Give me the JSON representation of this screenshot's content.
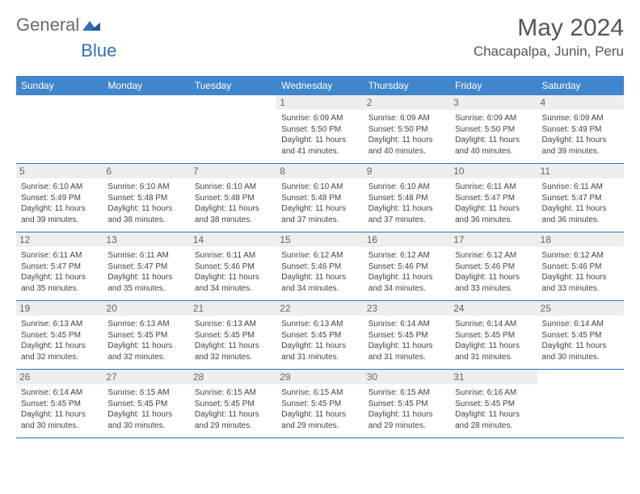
{
  "brand": {
    "left": "General",
    "right": "Blue"
  },
  "title": {
    "month_year": "May 2024",
    "location": "Chacapalpa, Junin, Peru"
  },
  "colors": {
    "header_bg": "#3f86cc",
    "border": "#2f71b8",
    "daynum_bg": "#eeeeee"
  },
  "weekdays": [
    "Sunday",
    "Monday",
    "Tuesday",
    "Wednesday",
    "Thursday",
    "Friday",
    "Saturday"
  ],
  "weeks": [
    [
      null,
      null,
      null,
      {
        "n": "1",
        "sunrise": "Sunrise: 6:09 AM",
        "sunset": "Sunset: 5:50 PM",
        "d1": "Daylight: 11 hours",
        "d2": "and 41 minutes."
      },
      {
        "n": "2",
        "sunrise": "Sunrise: 6:09 AM",
        "sunset": "Sunset: 5:50 PM",
        "d1": "Daylight: 11 hours",
        "d2": "and 40 minutes."
      },
      {
        "n": "3",
        "sunrise": "Sunrise: 6:09 AM",
        "sunset": "Sunset: 5:50 PM",
        "d1": "Daylight: 11 hours",
        "d2": "and 40 minutes."
      },
      {
        "n": "4",
        "sunrise": "Sunrise: 6:09 AM",
        "sunset": "Sunset: 5:49 PM",
        "d1": "Daylight: 11 hours",
        "d2": "and 39 minutes."
      }
    ],
    [
      {
        "n": "5",
        "sunrise": "Sunrise: 6:10 AM",
        "sunset": "Sunset: 5:49 PM",
        "d1": "Daylight: 11 hours",
        "d2": "and 39 minutes."
      },
      {
        "n": "6",
        "sunrise": "Sunrise: 6:10 AM",
        "sunset": "Sunset: 5:48 PM",
        "d1": "Daylight: 11 hours",
        "d2": "and 38 minutes."
      },
      {
        "n": "7",
        "sunrise": "Sunrise: 6:10 AM",
        "sunset": "Sunset: 5:48 PM",
        "d1": "Daylight: 11 hours",
        "d2": "and 38 minutes."
      },
      {
        "n": "8",
        "sunrise": "Sunrise: 6:10 AM",
        "sunset": "Sunset: 5:48 PM",
        "d1": "Daylight: 11 hours",
        "d2": "and 37 minutes."
      },
      {
        "n": "9",
        "sunrise": "Sunrise: 6:10 AM",
        "sunset": "Sunset: 5:48 PM",
        "d1": "Daylight: 11 hours",
        "d2": "and 37 minutes."
      },
      {
        "n": "10",
        "sunrise": "Sunrise: 6:11 AM",
        "sunset": "Sunset: 5:47 PM",
        "d1": "Daylight: 11 hours",
        "d2": "and 36 minutes."
      },
      {
        "n": "11",
        "sunrise": "Sunrise: 6:11 AM",
        "sunset": "Sunset: 5:47 PM",
        "d1": "Daylight: 11 hours",
        "d2": "and 36 minutes."
      }
    ],
    [
      {
        "n": "12",
        "sunrise": "Sunrise: 6:11 AM",
        "sunset": "Sunset: 5:47 PM",
        "d1": "Daylight: 11 hours",
        "d2": "and 35 minutes."
      },
      {
        "n": "13",
        "sunrise": "Sunrise: 6:11 AM",
        "sunset": "Sunset: 5:47 PM",
        "d1": "Daylight: 11 hours",
        "d2": "and 35 minutes."
      },
      {
        "n": "14",
        "sunrise": "Sunrise: 6:11 AM",
        "sunset": "Sunset: 5:46 PM",
        "d1": "Daylight: 11 hours",
        "d2": "and 34 minutes."
      },
      {
        "n": "15",
        "sunrise": "Sunrise: 6:12 AM",
        "sunset": "Sunset: 5:46 PM",
        "d1": "Daylight: 11 hours",
        "d2": "and 34 minutes."
      },
      {
        "n": "16",
        "sunrise": "Sunrise: 6:12 AM",
        "sunset": "Sunset: 5:46 PM",
        "d1": "Daylight: 11 hours",
        "d2": "and 34 minutes."
      },
      {
        "n": "17",
        "sunrise": "Sunrise: 6:12 AM",
        "sunset": "Sunset: 5:46 PM",
        "d1": "Daylight: 11 hours",
        "d2": "and 33 minutes."
      },
      {
        "n": "18",
        "sunrise": "Sunrise: 6:12 AM",
        "sunset": "Sunset: 5:46 PM",
        "d1": "Daylight: 11 hours",
        "d2": "and 33 minutes."
      }
    ],
    [
      {
        "n": "19",
        "sunrise": "Sunrise: 6:13 AM",
        "sunset": "Sunset: 5:45 PM",
        "d1": "Daylight: 11 hours",
        "d2": "and 32 minutes."
      },
      {
        "n": "20",
        "sunrise": "Sunrise: 6:13 AM",
        "sunset": "Sunset: 5:45 PM",
        "d1": "Daylight: 11 hours",
        "d2": "and 32 minutes."
      },
      {
        "n": "21",
        "sunrise": "Sunrise: 6:13 AM",
        "sunset": "Sunset: 5:45 PM",
        "d1": "Daylight: 11 hours",
        "d2": "and 32 minutes."
      },
      {
        "n": "22",
        "sunrise": "Sunrise: 6:13 AM",
        "sunset": "Sunset: 5:45 PM",
        "d1": "Daylight: 11 hours",
        "d2": "and 31 minutes."
      },
      {
        "n": "23",
        "sunrise": "Sunrise: 6:14 AM",
        "sunset": "Sunset: 5:45 PM",
        "d1": "Daylight: 11 hours",
        "d2": "and 31 minutes."
      },
      {
        "n": "24",
        "sunrise": "Sunrise: 6:14 AM",
        "sunset": "Sunset: 5:45 PM",
        "d1": "Daylight: 11 hours",
        "d2": "and 31 minutes."
      },
      {
        "n": "25",
        "sunrise": "Sunrise: 6:14 AM",
        "sunset": "Sunset: 5:45 PM",
        "d1": "Daylight: 11 hours",
        "d2": "and 30 minutes."
      }
    ],
    [
      {
        "n": "26",
        "sunrise": "Sunrise: 6:14 AM",
        "sunset": "Sunset: 5:45 PM",
        "d1": "Daylight: 11 hours",
        "d2": "and 30 minutes."
      },
      {
        "n": "27",
        "sunrise": "Sunrise: 6:15 AM",
        "sunset": "Sunset: 5:45 PM",
        "d1": "Daylight: 11 hours",
        "d2": "and 30 minutes."
      },
      {
        "n": "28",
        "sunrise": "Sunrise: 6:15 AM",
        "sunset": "Sunset: 5:45 PM",
        "d1": "Daylight: 11 hours",
        "d2": "and 29 minutes."
      },
      {
        "n": "29",
        "sunrise": "Sunrise: 6:15 AM",
        "sunset": "Sunset: 5:45 PM",
        "d1": "Daylight: 11 hours",
        "d2": "and 29 minutes."
      },
      {
        "n": "30",
        "sunrise": "Sunrise: 6:15 AM",
        "sunset": "Sunset: 5:45 PM",
        "d1": "Daylight: 11 hours",
        "d2": "and 29 minutes."
      },
      {
        "n": "31",
        "sunrise": "Sunrise: 6:16 AM",
        "sunset": "Sunset: 5:45 PM",
        "d1": "Daylight: 11 hours",
        "d2": "and 28 minutes."
      },
      null
    ]
  ]
}
